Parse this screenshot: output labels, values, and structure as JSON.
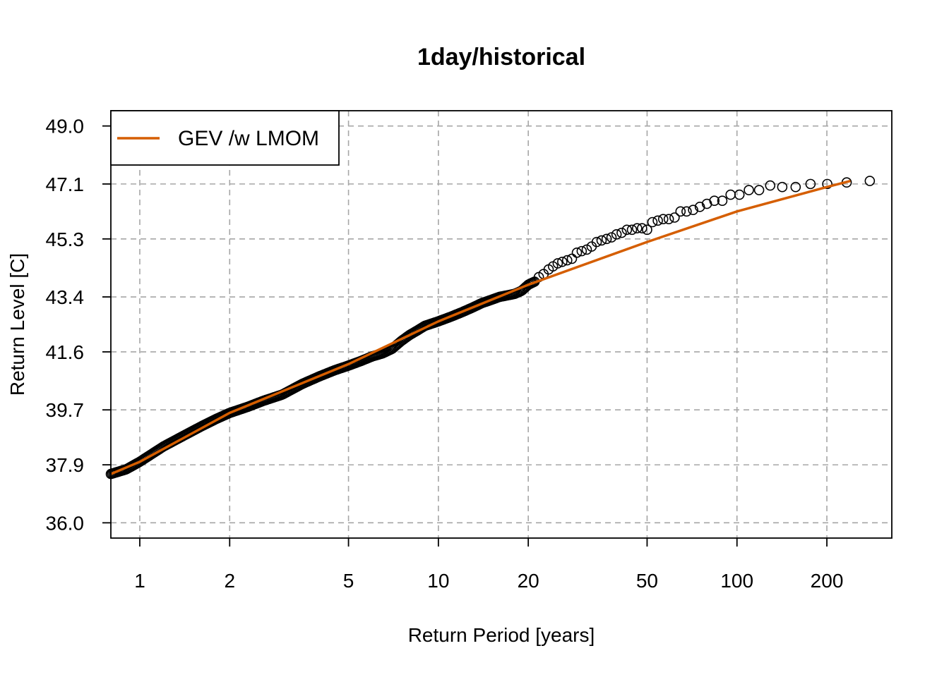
{
  "chart_data": {
    "type": "scatter",
    "title": "1day/historical",
    "xlabel": "Return Period [years]",
    "ylabel": "Return Level [C]",
    "x_scale": "log",
    "xlim": [
      0.8,
      330
    ],
    "ylim": [
      35.5,
      49.5
    ],
    "x_ticks": [
      1,
      2,
      5,
      10,
      20,
      50,
      100,
      200
    ],
    "x_tick_labels": [
      "1",
      "2",
      "5",
      "10",
      "20",
      "50",
      "100",
      "200"
    ],
    "y_ticks": [
      36.0,
      37.9,
      39.7,
      41.6,
      43.4,
      45.3,
      47.1,
      49.0
    ],
    "y_tick_labels": [
      "36.0",
      "37.9",
      "39.7",
      "41.6",
      "43.4",
      "45.3",
      "47.1",
      "49.0"
    ],
    "grid": true,
    "legend": {
      "position": "top-left",
      "entries": [
        "GEV /w LMOM"
      ]
    },
    "colors": {
      "fit": "#D55E00",
      "points": "#000000",
      "grid": "#a6a6a6"
    },
    "series": [
      {
        "name": "GEV /w LMOM",
        "kind": "line",
        "x": [
          0.8,
          1,
          2,
          5,
          10,
          20,
          50,
          100,
          200,
          240
        ],
        "y": [
          37.6,
          38.0,
          39.6,
          41.2,
          42.6,
          43.8,
          45.2,
          46.2,
          47.0,
          47.2
        ]
      },
      {
        "kind": "points",
        "marker": "open-circle",
        "x": [
          21.7,
          22.5,
          23.4,
          24.2,
          25.1,
          26.0,
          27.0,
          28.0,
          29.1,
          30.2,
          31.4,
          32.6,
          33.9,
          35.2,
          36.6,
          38.0,
          39.5,
          41.1,
          42.8,
          44.5,
          46.3,
          48.1,
          50.0,
          52.1,
          54.3,
          56.6,
          59.1,
          61.8,
          64.7,
          67.8,
          71.3,
          75.1,
          79.3,
          84.0,
          89.3,
          95.2,
          101.9,
          109.6,
          118.6,
          129.2,
          141.8,
          157.2,
          176.3,
          200.6,
          233.0,
          278.5
        ],
        "y": [
          44.05,
          44.15,
          44.3,
          44.4,
          44.5,
          44.55,
          44.6,
          44.65,
          44.85,
          44.9,
          44.95,
          45.05,
          45.2,
          45.25,
          45.3,
          45.35,
          45.45,
          45.5,
          45.6,
          45.6,
          45.65,
          45.65,
          45.6,
          45.85,
          45.9,
          45.95,
          45.95,
          46.0,
          46.2,
          46.2,
          46.25,
          46.35,
          46.45,
          46.55,
          46.55,
          46.75,
          46.75,
          46.9,
          46.9,
          47.05,
          47.0,
          47.0,
          47.1,
          47.1,
          47.15,
          47.2
        ]
      },
      {
        "kind": "dense-points",
        "marker": "open-circle",
        "x": [
          0.8,
          0.9,
          1.0,
          1.2,
          1.4,
          1.6,
          1.8,
          2.0,
          2.3,
          2.6,
          3.0,
          3.5,
          4.0,
          4.5,
          5.0,
          5.5,
          6.0,
          6.5,
          7.0,
          7.5,
          8.0,
          8.5,
          9.0,
          10.0,
          11.0,
          12.0,
          13.0,
          14.0,
          15.0,
          16.0,
          17.0,
          18.0,
          19.0,
          20.0,
          21.0
        ],
        "y": [
          37.6,
          37.75,
          38.0,
          38.5,
          38.85,
          39.15,
          39.4,
          39.6,
          39.8,
          40.0,
          40.2,
          40.55,
          40.8,
          41.0,
          41.15,
          41.3,
          41.45,
          41.55,
          41.7,
          41.95,
          42.15,
          42.3,
          42.45,
          42.6,
          42.75,
          42.9,
          43.05,
          43.2,
          43.3,
          43.4,
          43.45,
          43.5,
          43.6,
          43.8,
          43.9
        ]
      }
    ]
  }
}
